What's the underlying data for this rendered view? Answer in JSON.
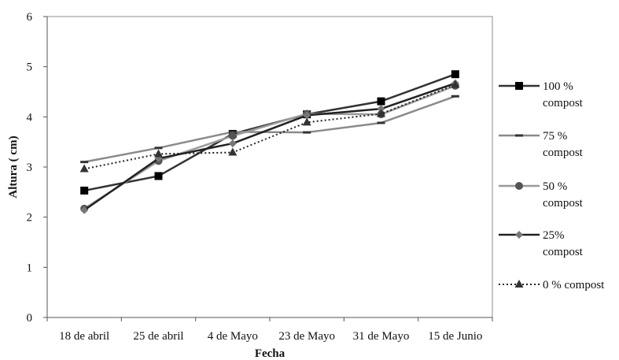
{
  "chart_data": {
    "type": "line",
    "title": "",
    "xlabel": "Fecha",
    "ylabel": "Altura ( cm)",
    "categories": [
      "18 de abril",
      "25 de abril",
      "4 de Mayo",
      "23 de Mayo",
      "31 de Mayo",
      "15 de Junio"
    ],
    "ylim": [
      0,
      6
    ],
    "yticks": [
      "0",
      "1",
      "2",
      "3",
      "4",
      "5",
      "6"
    ],
    "grid": false,
    "legend_position": "right",
    "series": [
      {
        "name": "100 % compost",
        "legend_lines": [
          "100 %",
          "compost"
        ],
        "values": [
          2.53,
          2.82,
          3.66,
          4.05,
          4.31,
          4.85
        ],
        "color": "#333333",
        "marker": "square",
        "dash": "solid"
      },
      {
        "name": "75 % compost",
        "legend_lines": [
          "75 %",
          "compost"
        ],
        "values": [
          3.1,
          3.38,
          3.7,
          3.69,
          3.88,
          4.41
        ],
        "color": "#8a8a8a",
        "marker": "dash",
        "dash": "solid"
      },
      {
        "name": "50 % compost",
        "legend_lines": [
          "50 %",
          "compost"
        ],
        "values": [
          2.17,
          3.12,
          3.62,
          4.06,
          4.05,
          4.62
        ],
        "color": "#9a9a9a",
        "marker": "circle",
        "dash": "solid"
      },
      {
        "name": "25% compost",
        "legend_lines": [
          "25%",
          "compost"
        ],
        "values": [
          2.14,
          3.17,
          3.47,
          4.03,
          4.16,
          4.67
        ],
        "color": "#222222",
        "marker": "diamond",
        "dash": "solid"
      },
      {
        "name": "0 % compost",
        "legend_lines": [
          "0 % compost"
        ],
        "values": [
          2.96,
          3.26,
          3.29,
          3.89,
          4.06,
          4.64
        ],
        "color": "#222222",
        "marker": "triangle",
        "dash": "dotted"
      }
    ]
  }
}
